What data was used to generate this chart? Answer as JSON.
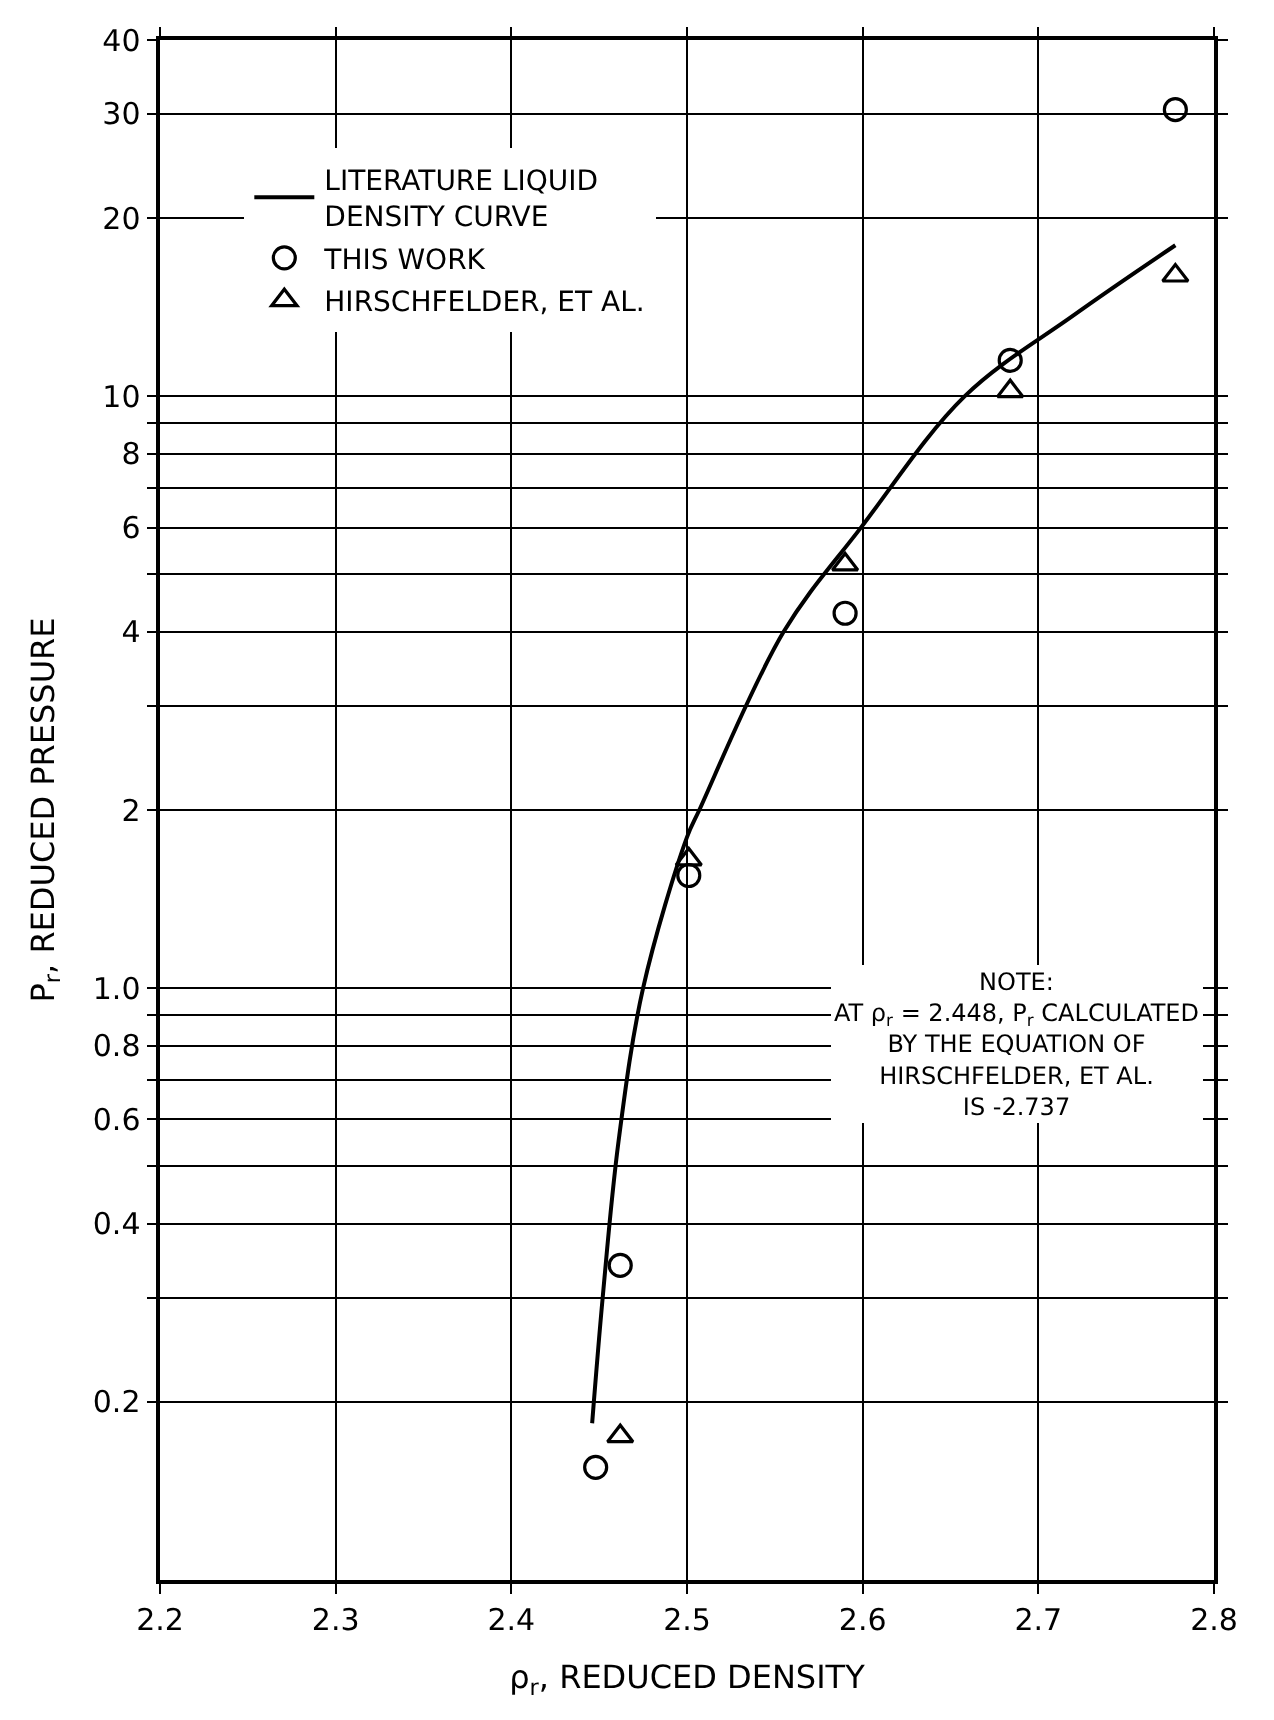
{
  "chart_data": {
    "type": "scatter",
    "xlabel": "ρ$_{r}$, REDUCED DENSITY",
    "ylabel": "P$_{r}$, REDUCED PRESSURE",
    "log": "y",
    "xlim": [
      2.2,
      2.8
    ],
    "xticks": [
      2.2,
      2.3,
      2.4,
      2.5,
      2.6,
      2.7,
      2.8
    ],
    "ylim": [
      0.1,
      40
    ],
    "yticks": [
      0.2,
      {
        "value": 0.3,
        "label": null
      },
      0.4,
      {
        "value": 0.5,
        "label": null
      },
      0.6,
      {
        "value": 0.7,
        "label": null
      },
      0.8,
      {
        "value": 0.9,
        "label": null
      },
      {
        "value": 1,
        "label": "1.0"
      },
      2,
      {
        "value": 3,
        "label": null
      },
      4,
      {
        "value": 5,
        "label": null
      },
      6,
      {
        "value": 7,
        "label": null
      },
      8,
      {
        "value": 9,
        "label": null
      },
      10,
      20,
      30,
      40
    ],
    "grid": true,
    "legend": "top left",
    "series": [
      {
        "name": "LITERATURE LIQUID\nDENSITY CURVE",
        "type": "line",
        "color": "#000000",
        "marker": "none",
        "line_style": "solid",
        "x": [
          2.446,
          2.452,
          2.461,
          2.475,
          2.5,
          2.507,
          2.555,
          2.599,
          2.658,
          2.72,
          2.778
        ],
        "values": [
          0.184,
          0.3,
          0.55,
          1.0,
          1.8,
          2.0,
          4.0,
          6.0,
          10.0,
          13.7,
          18.0
        ]
      },
      {
        "name": "THIS WORK",
        "color": "#000000",
        "marker": "circle",
        "x": [
          2.448,
          2.462,
          2.501,
          2.59,
          2.684,
          2.778
        ],
        "values": [
          0.155,
          0.34,
          1.55,
          4.3,
          11.5,
          30.5
        ]
      },
      {
        "name": "HIRSCHFELDER, ET AL.",
        "color": "#000000",
        "marker": "triangle",
        "x": [
          2.462,
          2.501,
          2.59,
          2.684,
          2.778
        ],
        "values": [
          0.175,
          1.65,
          5.2,
          10.2,
          16.0
        ]
      }
    ],
    "annotations": [
      "NOTE:\nAT ρ$_{r}$ = 2.448, P$_{r}$ CALCULATED\nBY THE EQUATION OF\nHIRSCHFELDER, ET AL.\nIS -2.737"
    ]
  }
}
